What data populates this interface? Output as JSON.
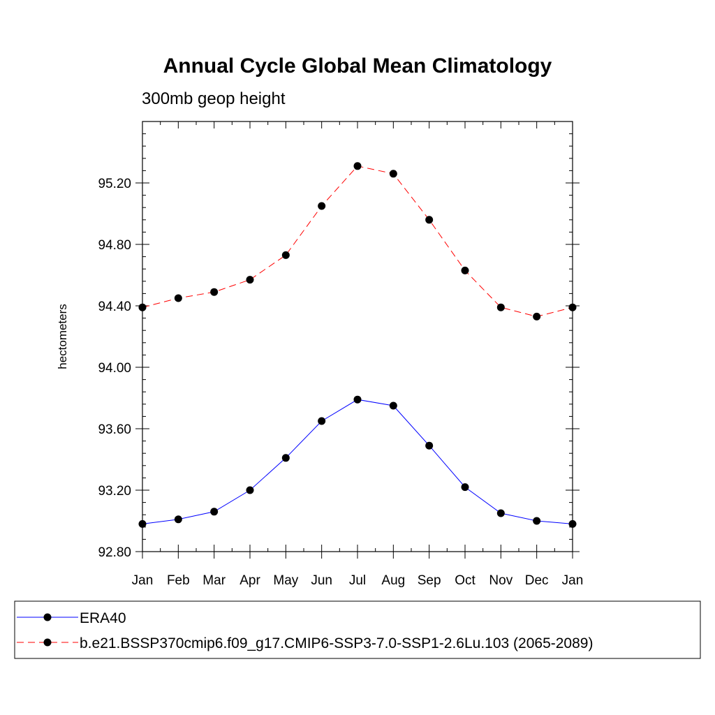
{
  "chart_data": {
    "type": "line",
    "title": "Annual Cycle Global Mean Climatology",
    "subtitle": "300mb geop height",
    "xlabel": "",
    "ylabel": "hectometers",
    "categories": [
      "Jan",
      "Feb",
      "Mar",
      "Apr",
      "May",
      "Jun",
      "Jul",
      "Aug",
      "Sep",
      "Oct",
      "Nov",
      "Dec",
      "Jan"
    ],
    "ylim": [
      92.8,
      95.6
    ],
    "y_ticks": [
      "92.80",
      "93.20",
      "93.60",
      "94.00",
      "94.40",
      "94.80",
      "95.20"
    ],
    "y_tick_values": [
      92.8,
      93.2,
      93.6,
      94.0,
      94.4,
      94.8,
      95.2
    ],
    "grid": false,
    "legend_placement": "bottom",
    "series": [
      {
        "name": "ERA40",
        "color": "#0000ff",
        "line_style": "solid",
        "marker": "filled-circle",
        "values": [
          92.98,
          93.01,
          93.06,
          93.2,
          93.41,
          93.65,
          93.79,
          93.75,
          93.49,
          93.22,
          93.05,
          93.0,
          92.98
        ]
      },
      {
        "name": "b.e21.BSSP370cmip6.f09_g17.CMIP6-SSP3-7.0-SSP1-2.6Lu.103 (2065-2089)",
        "color": "#ff0000",
        "line_style": "dashed",
        "marker": "filled-circle",
        "values": [
          94.39,
          94.45,
          94.49,
          94.57,
          94.73,
          95.05,
          95.31,
          95.26,
          94.96,
          94.63,
          94.39,
          94.33,
          94.39
        ]
      }
    ]
  }
}
